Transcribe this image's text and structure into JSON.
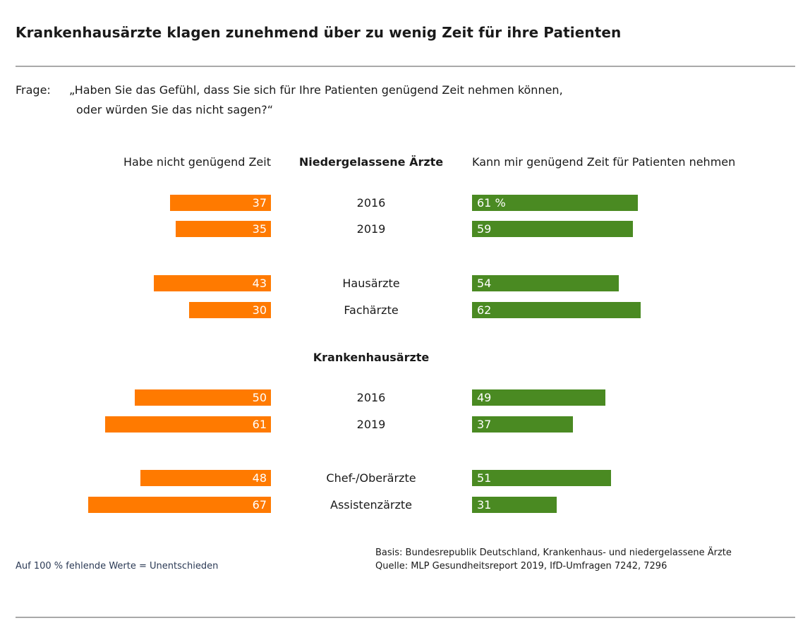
{
  "header": {
    "title": "Krankenhausärzte klagen zunehmend über zu wenig Zeit für ihre Patienten"
  },
  "question": {
    "label": "Frage:",
    "line1": "„Haben Sie das Gefühl, dass Sie sich für Ihre Patienten genügend Zeit nehmen können,",
    "line2": "oder würden Sie das nicht sagen?“"
  },
  "colors": {
    "left": "#ff7a00",
    "right": "#4a8a22"
  },
  "chart_data": {
    "type": "bar",
    "orientation": "horizontal-diverging",
    "left_header": "Habe nicht genügend Zeit",
    "right_header": "Kann mir genügend Zeit für Patienten nehmen",
    "groups": [
      {
        "name": "Niedergelassene Ärzte",
        "rows": [
          {
            "label": "2016",
            "left": 37,
            "right": 61,
            "left_text": "37",
            "right_text": "61 %"
          },
          {
            "label": "2019",
            "left": 35,
            "right": 59,
            "left_text": "35",
            "right_text": "59"
          },
          {
            "label": "Hausärzte",
            "left": 43,
            "right": 54,
            "left_text": "43",
            "right_text": "54"
          },
          {
            "label": "Fachärzte",
            "left": 30,
            "right": 62,
            "left_text": "30",
            "right_text": "62"
          }
        ]
      },
      {
        "name": "Krankenhausärzte",
        "rows": [
          {
            "label": "2016",
            "left": 50,
            "right": 49,
            "left_text": "50",
            "right_text": "49"
          },
          {
            "label": "2019",
            "left": 61,
            "right": 37,
            "left_text": "61",
            "right_text": "37"
          },
          {
            "label": "Chef-/Oberärzte",
            "left": 48,
            "right": 51,
            "left_text": "48",
            "right_text": "51"
          },
          {
            "label": "Assistenzärzte",
            "left": 67,
            "right": 31,
            "left_text": "67",
            "right_text": "31"
          }
        ]
      }
    ],
    "unit": "%"
  },
  "footnote": "Auf 100 % fehlende Werte = Unentschieden",
  "source": {
    "line1": "Basis: Bundesrepublik Deutschland, Krankenhaus- und niedergelassene Ärzte",
    "line2": "Quelle: MLP Gesundheitsreport 2019, IfD-Umfragen 7242, 7296"
  }
}
